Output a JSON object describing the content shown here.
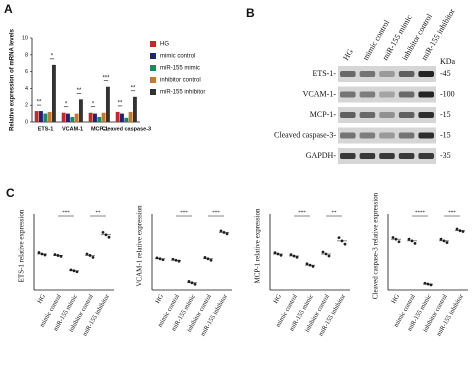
{
  "panel_labels": [
    "A",
    "B",
    "C"
  ],
  "chart_data": [
    {
      "type": "bar",
      "y_label": "Relative expression of mRNA levels",
      "categories": [
        "ETS-1",
        "VCAM-1",
        "MCP-1",
        "Cleaved caspase-3"
      ],
      "series": [
        {
          "name": "HG",
          "color": "#c62828",
          "values": [
            1.3,
            1.1,
            1.1,
            1.2
          ]
        },
        {
          "name": "mimic control",
          "color": "#1a237e",
          "values": [
            1.3,
            1.0,
            1.0,
            1.0
          ]
        },
        {
          "name": "miR-155 mimic",
          "color": "#1b8a5a",
          "values": [
            1.0,
            0.6,
            0.6,
            0.5
          ]
        },
        {
          "name": "inhibitor control",
          "color": "#c87a2a",
          "values": [
            1.2,
            1.0,
            1.1,
            1.2
          ]
        },
        {
          "name": "miR-155 inhibitor",
          "color": "#333333",
          "values": [
            6.8,
            2.7,
            4.2,
            3.0
          ]
        }
      ],
      "annotations": [
        [
          "**",
          "*"
        ],
        [
          "*",
          "**"
        ],
        [
          "*",
          "***"
        ],
        [
          "**",
          "**"
        ]
      ],
      "ylim": [
        0,
        10
      ],
      "yticks": [
        0,
        2,
        4,
        6,
        8,
        10
      ]
    },
    {
      "type": "dot",
      "y_label": "ETS-1 relative expression",
      "categories": [
        "HG",
        "mimic control",
        "miR-155 mimic",
        "inhibitor control",
        "miR-155 inhibitor"
      ],
      "points": [
        [
          0.78,
          0.75,
          0.73
        ],
        [
          0.74,
          0.72,
          0.7
        ],
        [
          0.42,
          0.4,
          0.38
        ],
        [
          0.75,
          0.72,
          0.68
        ],
        [
          1.2,
          1.15,
          1.1
        ]
      ],
      "annotations": [
        "***",
        "**"
      ],
      "ylim": [
        0,
        1.5
      ]
    },
    {
      "type": "dot",
      "y_label": "VCAM-1 relative expression",
      "categories": [
        "HG",
        "mimic control",
        "miR-155 mimic",
        "inhibitor control",
        "miR-155 inhibitor"
      ],
      "points": [
        [
          0.67,
          0.65,
          0.63
        ],
        [
          0.64,
          0.62,
          0.6
        ],
        [
          0.18,
          0.15,
          0.12
        ],
        [
          0.68,
          0.65,
          0.62
        ],
        [
          1.23,
          1.2,
          1.17
        ]
      ],
      "annotations": [
        "***",
        "***"
      ],
      "ylim": [
        0,
        1.5
      ]
    },
    {
      "type": "dot",
      "y_label": "MCP-1 relative expression",
      "categories": [
        "HG",
        "mimic control",
        "miR-155 mimic",
        "inhibitor control",
        "miR-155 inhibitor"
      ],
      "points": [
        [
          0.57,
          0.55,
          0.53
        ],
        [
          0.54,
          0.52,
          0.5
        ],
        [
          0.4,
          0.38,
          0.36
        ],
        [
          0.58,
          0.55,
          0.52
        ],
        [
          0.8,
          0.75,
          0.7
        ]
      ],
      "annotations": [
        "***",
        "**"
      ],
      "ylim": [
        0,
        1.1
      ]
    },
    {
      "type": "dot",
      "y_label": "Cleaved caspase-3 relative expression",
      "categories": [
        "HG",
        "mimic control",
        "miR-155 mimic",
        "inhibitor control",
        "miR-155 inhibitor"
      ],
      "points": [
        [
          0.62,
          0.6,
          0.57
        ],
        [
          0.6,
          0.58,
          0.55
        ],
        [
          0.08,
          0.07,
          0.06
        ],
        [
          0.6,
          0.58,
          0.56
        ],
        [
          0.72,
          0.7,
          0.69
        ]
      ],
      "annotations": [
        "****",
        "***"
      ],
      "ylim": [
        0,
        0.85
      ]
    }
  ],
  "blot": {
    "lanes": [
      "HG",
      "mimic control",
      "miR-155 mimic",
      "inhibitor control",
      "miR-155 inhibitor"
    ],
    "rows": [
      "ETS-1-",
      "VCAM-1-",
      "MCP-1-",
      "Cleaved caspase-3-",
      "GAPDH-"
    ],
    "kda_title": "KDa",
    "kda": [
      "-45",
      "-100",
      "-15",
      "-15",
      "-35"
    ]
  }
}
